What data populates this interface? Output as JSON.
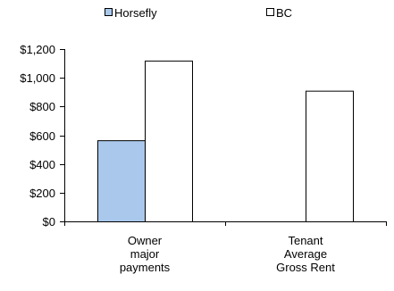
{
  "chart_data": {
    "type": "bar",
    "categories": [
      [
        "Owner",
        "major",
        "payments"
      ],
      [
        "Tenant",
        "Average",
        "Gross Rent"
      ]
    ],
    "series": [
      {
        "name": "Horsefly",
        "values": [
          565,
          null
        ],
        "color": "#a9c8ec"
      },
      {
        "name": "BC",
        "values": [
          1120,
          910
        ],
        "color": "#ffffff"
      }
    ],
    "ylim": [
      0,
      1200
    ],
    "yticks": [
      0,
      200,
      400,
      600,
      800,
      1000,
      1200
    ],
    "ytick_labels": [
      "$0",
      "$200",
      "$400",
      "$600",
      "$800",
      "$1,000",
      "$1,200"
    ],
    "legend": "top",
    "grid": false
  }
}
